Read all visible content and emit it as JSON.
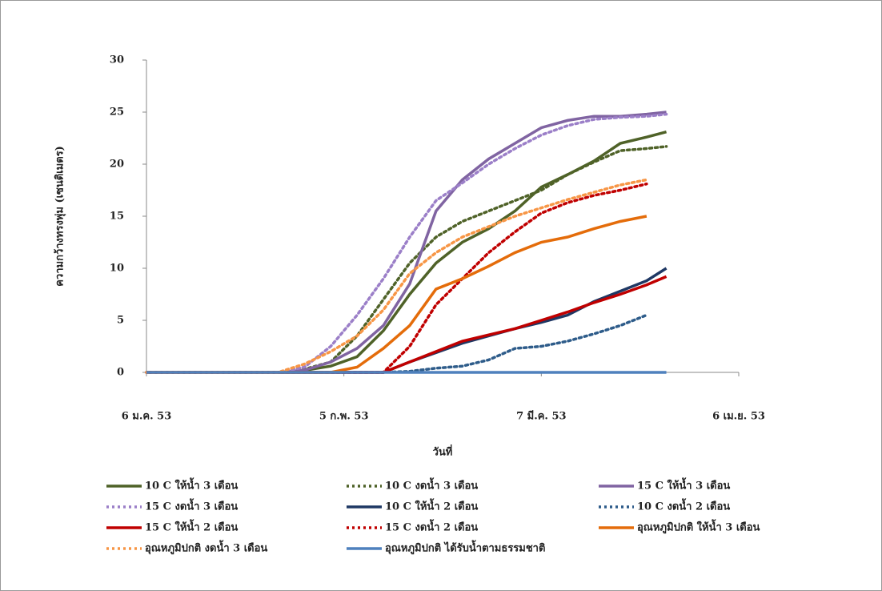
{
  "chart_data": {
    "type": "line",
    "y_label": "ความกว้างทรงพุ่ม (เซนติเมตร)",
    "x_label": "วันที่",
    "x": [
      0,
      10,
      20,
      24,
      28,
      32,
      36,
      40,
      44,
      48,
      52,
      56,
      60,
      64,
      68,
      72,
      76,
      79
    ],
    "xlim": [
      0,
      90
    ],
    "xticks": [
      {
        "value": 0,
        "label": "6 ม.ค. 53"
      },
      {
        "value": 30,
        "label": "5 ก.พ. 53"
      },
      {
        "value": 60,
        "label": "7 มี.ค. 53"
      },
      {
        "value": 90,
        "label": "6 เม.ย. 53"
      }
    ],
    "ylim": [
      0,
      30
    ],
    "yticks": [
      0,
      5,
      10,
      15,
      20,
      25,
      30
    ],
    "grid": false,
    "series": [
      {
        "name": "10 C ให้น้ำ 3 เดือน",
        "color": "#4f6228",
        "style": "solid",
        "values": [
          0,
          0,
          0,
          0.2,
          0.6,
          1.5,
          4,
          7.5,
          10.5,
          12.5,
          13.8,
          15.5,
          17.8,
          19,
          20.3,
          22,
          22.6,
          23.1
        ]
      },
      {
        "name": "10 C งดน้ำ 3 เดือน",
        "color": "#4f6228",
        "style": "dotted",
        "values": [
          0,
          0,
          0,
          0.3,
          1,
          3.5,
          7,
          10.5,
          13,
          14.5,
          15.5,
          16.5,
          17.5,
          19,
          20.2,
          21.3,
          21.5,
          21.7
        ]
      },
      {
        "name": "15 C ให้น้ำ 3 เดือน",
        "color": "#8064a2",
        "style": "solid",
        "values": [
          0,
          0,
          0,
          0.2,
          1,
          2.3,
          4.5,
          8.5,
          15.5,
          18.5,
          20.5,
          22,
          23.5,
          24.2,
          24.6,
          24.6,
          24.8,
          25
        ]
      },
      {
        "name": "15 C งดน้ำ 3 เดือน",
        "color": "#9b7fc8",
        "style": "dotted",
        "values": [
          0,
          0,
          0,
          0.5,
          2.5,
          5.5,
          9,
          13,
          16.5,
          18.2,
          20,
          21.5,
          22.8,
          23.7,
          24.3,
          24.5,
          24.6,
          24.8
        ]
      },
      {
        "name": "10 C ให้น้ำ 2 เดือน",
        "color": "#1f3864",
        "style": "solid",
        "values": [
          0,
          0,
          0,
          0,
          0,
          0,
          0,
          1,
          1.9,
          2.8,
          3.5,
          4.2,
          4.8,
          5.5,
          6.8,
          7.8,
          8.8,
          10
        ]
      },
      {
        "name": "10 C งดน้ำ 2 เดือน",
        "color": "#2e5c8a",
        "style": "dotted",
        "values": [
          0,
          0,
          0,
          0,
          0,
          0,
          0,
          0.1,
          0.4,
          0.6,
          1.2,
          2.3,
          2.5,
          3,
          3.7,
          4.5,
          5.5,
          null
        ]
      },
      {
        "name": "15 C ให้น้ำ 2 เดือน",
        "color": "#c00000",
        "style": "solid",
        "values": [
          0,
          0,
          0,
          0,
          0,
          0,
          0,
          1,
          2,
          3,
          3.6,
          4.2,
          5,
          5.8,
          6.7,
          7.5,
          8.4,
          9.2
        ]
      },
      {
        "name": "15 C งดน้ำ 2 เดือน",
        "color": "#c00000",
        "style": "dotted",
        "values": [
          0,
          0,
          0,
          0,
          0,
          0,
          0,
          2.5,
          6.5,
          9,
          11.5,
          13.5,
          15.3,
          16.3,
          17,
          17.5,
          18.1,
          null
        ]
      },
      {
        "name": "อุณหภูมิปกติ ให้น้ำ 3 เดือน",
        "color": "#e46c0a",
        "style": "solid",
        "values": [
          0,
          0,
          0,
          0,
          0,
          0.5,
          2.3,
          4.5,
          8,
          9,
          10.2,
          11.5,
          12.5,
          13,
          13.8,
          14.5,
          15,
          null
        ]
      },
      {
        "name": "อุณหภูมิปกติ งดน้ำ 3 เดือน",
        "color": "#f79646",
        "style": "dotted",
        "values": [
          0,
          0,
          0,
          0.8,
          2,
          3.5,
          6,
          9.5,
          11.5,
          13,
          14,
          15,
          15.8,
          16.6,
          17.3,
          18,
          18.5,
          null
        ]
      },
      {
        "name": "อุณหภูมิปกติ ได้รับน้ำตามธรรมชาติ",
        "color": "#4f81bd",
        "style": "solid",
        "values": [
          0,
          0,
          0,
          0,
          0,
          0,
          0,
          0,
          0,
          0,
          0,
          0,
          0,
          0,
          0,
          0,
          0,
          0
        ]
      }
    ]
  }
}
